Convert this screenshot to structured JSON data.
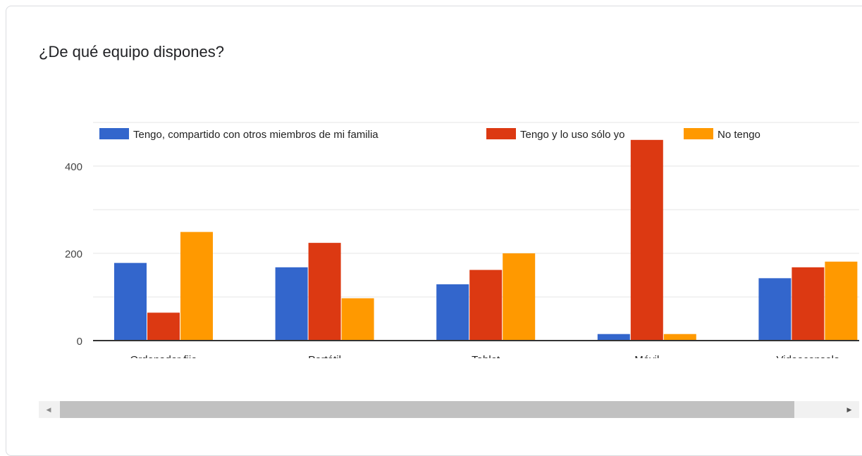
{
  "title": "¿De qué equipo dispones?",
  "colors": {
    "series": [
      "#3366cc",
      "#dc3912",
      "#ff9900"
    ],
    "grid": "#e6e6e6",
    "baseline": "#333333",
    "text": "#222222"
  },
  "chart_data": {
    "type": "bar",
    "categories": [
      "Ordenador fijo",
      "Portátil",
      "Tablet",
      "Móvil",
      "Videoconsola"
    ],
    "series": [
      {
        "name": "Tengo, compartido con otros miembros de mi familia",
        "values": [
          178,
          168,
          129,
          15,
          143
        ]
      },
      {
        "name": "Tengo y lo uso sólo yo",
        "values": [
          64,
          224,
          162,
          460,
          168
        ]
      },
      {
        "name": "No tengo",
        "values": [
          249,
          97,
          200,
          15,
          181
        ]
      }
    ],
    "y_ticks": [
      0,
      200,
      400
    ],
    "ylim": [
      0,
      500
    ],
    "grid": true,
    "legend_position": "top"
  },
  "scrollbar": {
    "left_arrow": "◀",
    "right_arrow": "▶"
  }
}
